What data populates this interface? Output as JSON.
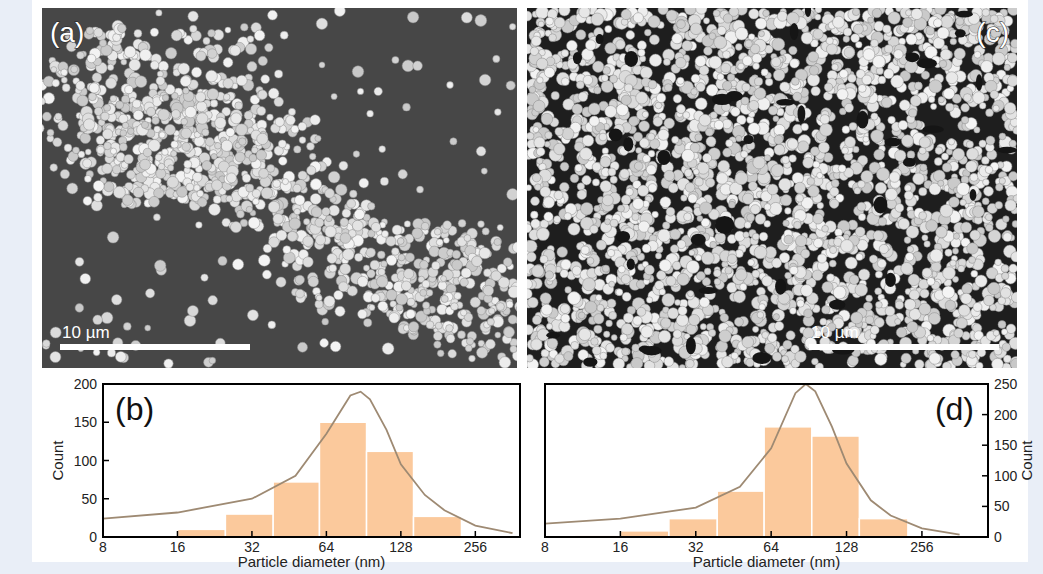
{
  "images": [
    {
      "label": "(a)",
      "scale_bar": "10 µm"
    },
    {
      "label": "(c)",
      "scale_bar": "10 µm"
    }
  ],
  "chart_data": [
    {
      "type": "histogram",
      "title": "(b)",
      "x_label": "Particle diameter (nm)",
      "y_label": "Count",
      "bins": [
        10.5,
        16,
        25,
        39,
        60,
        93,
        144,
        225
      ],
      "values": [
        2,
        10,
        30,
        72,
        150,
        112,
        27
      ],
      "color": "#fbc99c",
      "log": "x",
      "xlim": [
        8,
        388
      ],
      "xticks": [
        8,
        16,
        32,
        64,
        128,
        256
      ],
      "ylim": [
        0,
        200
      ],
      "yticks": [
        0,
        50,
        100,
        150,
        200
      ],
      "series": [
        {
          "type": "line",
          "color": "#9e8a73",
          "x": [
            8,
            16,
            32,
            48,
            64,
            80,
            88,
            96,
            112,
            128,
            160,
            192,
            256,
            362
          ],
          "values": [
            24,
            32,
            50,
            80,
            135,
            185,
            190,
            180,
            140,
            95,
            55,
            35,
            15,
            5
          ]
        }
      ]
    },
    {
      "type": "histogram",
      "title": "(d)",
      "x_label": "Particle diameter (nm)",
      "y2_label": "Count",
      "bins": [
        10.5,
        16,
        25,
        39,
        60,
        93,
        144,
        225
      ],
      "values": [
        3,
        10,
        30,
        75,
        180,
        165,
        30
      ],
      "color": "#fbc99c",
      "log": "x",
      "xlim": [
        8,
        470
      ],
      "xticks": [
        8,
        16,
        32,
        64,
        128,
        256
      ],
      "y2lim": [
        0,
        250
      ],
      "y2ticks": [
        0,
        50,
        100,
        150,
        200,
        250
      ],
      "series": [
        {
          "type": "line",
          "color": "#9e8a73",
          "axis": "y2",
          "x": [
            8,
            16,
            32,
            48,
            64,
            80,
            88,
            96,
            112,
            128,
            160,
            192,
            256,
            362
          ],
          "values": [
            22,
            30,
            48,
            82,
            145,
            235,
            250,
            238,
            180,
            120,
            60,
            35,
            14,
            4
          ]
        }
      ]
    }
  ]
}
